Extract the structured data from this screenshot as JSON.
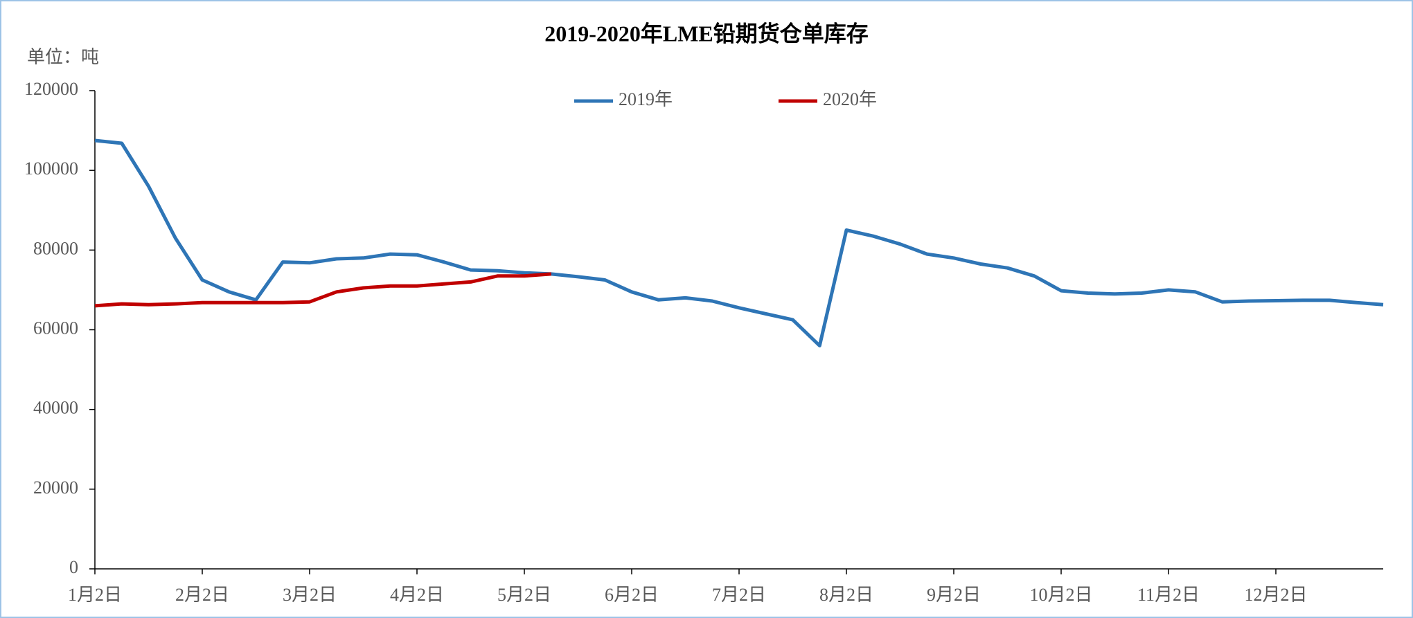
{
  "chart_data": {
    "type": "line",
    "title": "2019-2020年LME铅期货仓单库存",
    "unit_label": "单位：吨",
    "categories": [
      "1月2日",
      null,
      null,
      null,
      "2月2日",
      null,
      null,
      null,
      "3月2日",
      null,
      null,
      null,
      "4月2日",
      null,
      null,
      null,
      "5月2日",
      null,
      null,
      null,
      "6月2日",
      null,
      null,
      null,
      "7月2日",
      null,
      null,
      null,
      "8月2日",
      null,
      null,
      null,
      "9月2日",
      null,
      null,
      null,
      "10月2日",
      null,
      null,
      null,
      "11月2日",
      null,
      null,
      null,
      "12月2日",
      null,
      null,
      null,
      null
    ],
    "series": [
      {
        "name": "2019年",
        "color": "#2e75b6",
        "values": [
          107500,
          106800,
          96000,
          83000,
          72500,
          69500,
          67500,
          77000,
          76800,
          77800,
          78000,
          79000,
          78800,
          77000,
          75000,
          74800,
          74300,
          74000,
          73300,
          72500,
          69500,
          67500,
          68000,
          67200,
          65500,
          64000,
          62500,
          56000,
          85000,
          83500,
          81500,
          79000,
          78000,
          76500,
          75500,
          73500,
          69800,
          69200,
          69000,
          69200,
          70000,
          69500,
          67000,
          67200,
          67300,
          67400,
          67400,
          66800,
          66300
        ]
      },
      {
        "name": "2020年",
        "color": "#c00000",
        "values": [
          66000,
          66500,
          66300,
          66500,
          66800,
          66800,
          66800,
          66800,
          67000,
          69500,
          70500,
          71000,
          71000,
          71500,
          72000,
          73500,
          73500,
          74000,
          null,
          null,
          null,
          null,
          null,
          null,
          null,
          null,
          null,
          null,
          null,
          null,
          null,
          null,
          null,
          null,
          null,
          null,
          null,
          null,
          null,
          null,
          null,
          null,
          null,
          null,
          null,
          null,
          null,
          null,
          null
        ]
      }
    ],
    "ylim": [
      0,
      120000
    ],
    "yticks": [
      0,
      20000,
      40000,
      60000,
      80000,
      100000,
      120000
    ],
    "legend": "top"
  }
}
